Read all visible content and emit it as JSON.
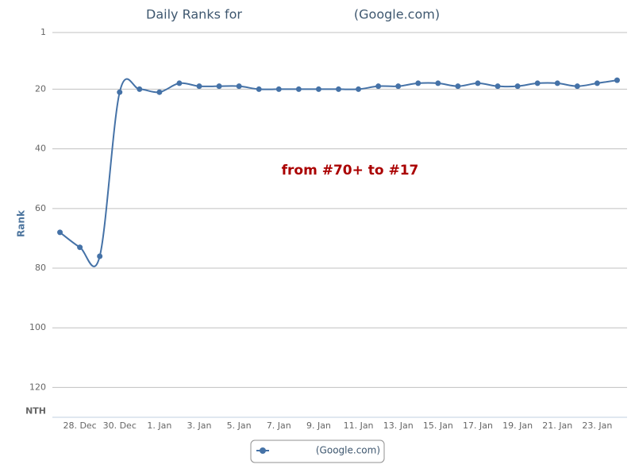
{
  "chart_data": {
    "type": "line",
    "title": "Daily Ranks for",
    "y_label": "Rank",
    "annotation": "from #70+ to #17",
    "categories": [
      null,
      "28. Dec",
      null,
      "30. Dec",
      null,
      "1. Jan",
      null,
      "3. Jan",
      null,
      "5. Jan",
      null,
      "7. Jan",
      null,
      "9. Jan",
      null,
      "11. Jan",
      null,
      "13. Jan",
      null,
      "15. Jan",
      null,
      "17. Jan",
      null,
      "19. Jan",
      null,
      "21. Jan",
      null,
      "23. Jan",
      null
    ],
    "series": [
      {
        "name": "(Google.com)",
        "color": "#4572a7",
        "values": [
          68,
          73,
          76,
          21,
          20,
          21,
          18,
          19,
          19,
          19,
          20,
          20,
          20,
          20,
          20,
          20,
          19,
          19,
          18,
          18,
          19,
          18,
          19,
          19,
          18,
          18,
          19,
          18,
          17
        ]
      }
    ],
    "ylim": [
      1,
      130
    ],
    "y_reversed": true,
    "yticks": [
      1,
      20,
      40,
      60,
      80,
      100,
      120,
      {
        "value": 128,
        "label": "NTH"
      }
    ],
    "grid": true,
    "legend": "bottom"
  }
}
